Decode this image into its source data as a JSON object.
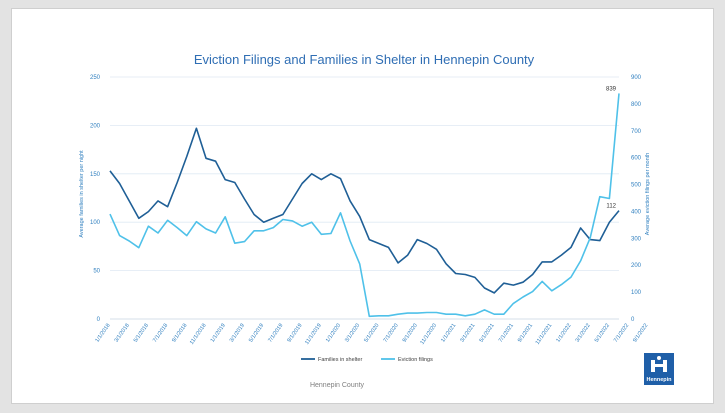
{
  "chart_data": {
    "type": "line",
    "title": "Eviction Filings and Families in Shelter in Hennepin County",
    "ylabel": "Average families in shelter  per night",
    "y2label": "Average eviction filings per month",
    "ylim": [
      0,
      250
    ],
    "y2lim": [
      0,
      900
    ],
    "yticks": [
      "0",
      "50",
      "100",
      "150",
      "200",
      "250"
    ],
    "y2ticks": [
      "0",
      "100",
      "200",
      "300",
      "400",
      "500",
      "600",
      "700",
      "800",
      "900"
    ],
    "x_tick_labels": [
      "1/1/2018",
      "3/1/2018",
      "5/1/2018",
      "7/1/2018",
      "9/1/2018",
      "11/1/2018",
      "1/1/2019",
      "3/1/2019",
      "5/1/2019",
      "7/1/2019",
      "9/1/2019",
      "11/1/2019",
      "1/1/2020",
      "3/1/2020",
      "5/1/2020",
      "7/1/2020",
      "9/1/2020",
      "11/1/2020",
      "1/1/2021",
      "3/1/2021",
      "5/1/2021",
      "7/1/2021",
      "9/1/2021",
      "11/1/2021",
      "1/1/2022",
      "3/1/2022",
      "5/1/2022",
      "7/1/2022",
      "9/1/2022"
    ],
    "series": [
      {
        "name": "Families in shelter",
        "axis": "left",
        "color": "#1f5f96",
        "values": [
          153,
          140,
          122,
          104,
          111,
          122,
          116,
          141,
          168,
          197,
          166,
          163,
          144,
          141,
          124,
          108,
          100,
          104,
          108,
          124,
          140,
          150,
          144,
          150,
          145,
          122,
          106,
          82,
          78,
          74,
          58,
          66,
          82,
          78,
          72,
          57,
          47,
          46,
          43,
          32,
          27,
          37,
          35,
          38,
          46,
          59,
          59,
          66,
          74,
          94,
          82,
          81,
          100,
          112
        ]
      },
      {
        "name": "Eviction filings",
        "axis": "right",
        "color": "#4fc1e9",
        "values": [
          390,
          310,
          290,
          265,
          345,
          320,
          367,
          340,
          310,
          362,
          335,
          320,
          380,
          282,
          288,
          328,
          328,
          340,
          370,
          365,
          345,
          360,
          315,
          318,
          395,
          290,
          205,
          10,
          12,
          12,
          18,
          22,
          22,
          24,
          24,
          18,
          18,
          12,
          18,
          34,
          18,
          18,
          58,
          82,
          102,
          140,
          105,
          128,
          156,
          216,
          302,
          455,
          448,
          839
        ]
      }
    ],
    "annotations": [
      {
        "text": "839",
        "series": "Eviction filings",
        "point": 53
      },
      {
        "text": "112",
        "series": "Families in shelter",
        "point": 53
      }
    ],
    "legend_position": "bottom",
    "grid": true
  },
  "footer": {
    "source": "Hennepin County"
  },
  "logo": {
    "text": "Hennepin"
  },
  "colors": {
    "grid": "#dfe9f3",
    "tick_text": "#2f7fbf",
    "title": "#2f6eb4"
  }
}
